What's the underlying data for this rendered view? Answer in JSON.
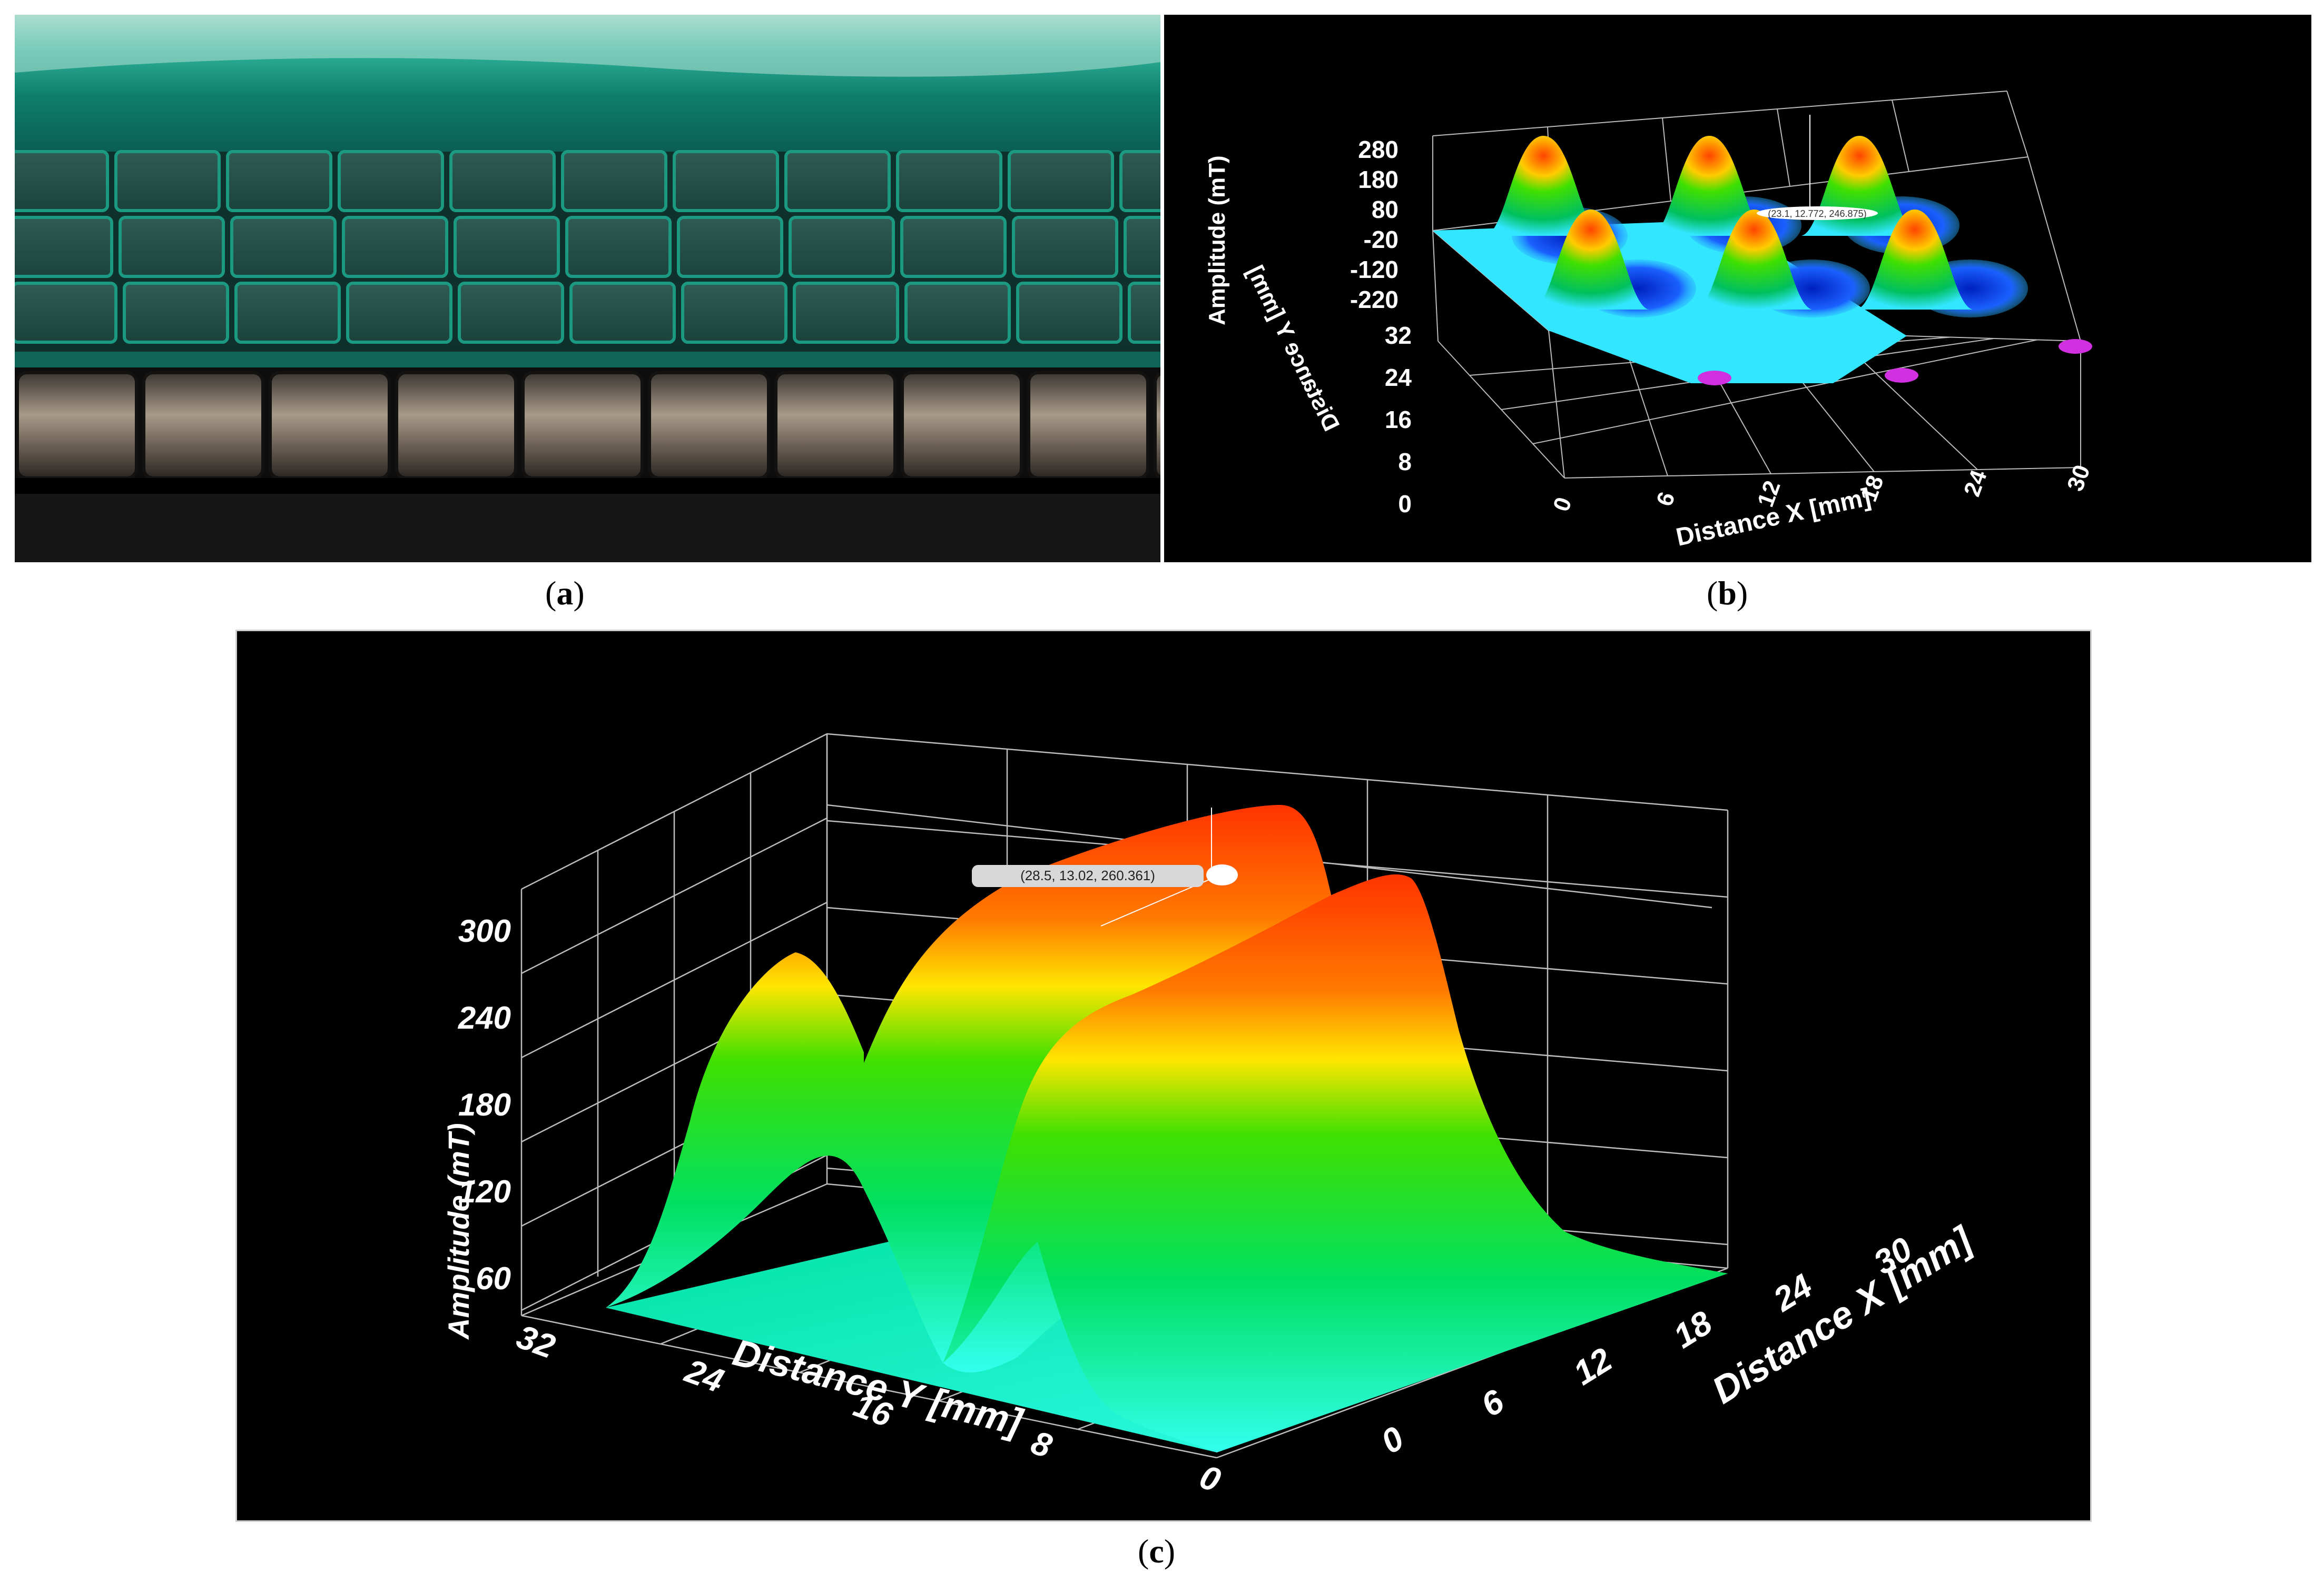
{
  "captions": {
    "a": "a",
    "b": "b",
    "c": "c"
  },
  "photo": {
    "description_icon": "magnet-array-photo-icon",
    "colors": {
      "film": "#17a890",
      "magnet": "#6b6058",
      "base": "#121212"
    }
  },
  "chart_data": [
    {
      "type": "surface3d",
      "panel": "b",
      "zlabel": "Amplitude (mT)",
      "ylabel": "Distance Y [mm]",
      "xlabel": "Distance X [mm]",
      "z_ticks": [
        "280",
        "180",
        "80",
        "-20",
        "-120",
        "-220"
      ],
      "y_ticks": [
        "32",
        "24",
        "16",
        "8",
        "0"
      ],
      "x_ticks": [
        "0",
        "6",
        "12",
        "18",
        "24",
        "30"
      ],
      "xlim": [
        0,
        30
      ],
      "ylim": [
        0,
        32
      ],
      "zlim": [
        -220,
        280
      ],
      "cursor_label": "(23.1, 12.772, 246.875)",
      "peaks_x": [
        6,
        15,
        24
      ],
      "peaks_y": [
        24,
        8
      ],
      "colors": {
        "high": "#ff5500",
        "mid": "#00e000",
        "base": "#33e6ff",
        "low": "#0020c0",
        "min": "#d030e0"
      }
    },
    {
      "type": "surface3d",
      "panel": "c",
      "zlabel": "Amplitude (mT)",
      "ylabel": "Distance Y [mm]",
      "xlabel": "Distance X [mm]",
      "z_ticks": [
        "300",
        "240",
        "180",
        "120",
        "60"
      ],
      "y_ticks": [
        "32",
        "24",
        "16",
        "8",
        "0"
      ],
      "x_ticks": [
        "0",
        "6",
        "12",
        "18",
        "24",
        "30"
      ],
      "xlim": [
        0,
        30
      ],
      "ylim": [
        0,
        32
      ],
      "zlim": [
        0,
        300
      ],
      "cursor_label": "(28.5, 13.02, 260.361)",
      "ridges_y": [
        22,
        13
      ],
      "peak_value": 260.361,
      "colors": {
        "high": "#ff3300",
        "mid": "#00e000",
        "base": "#33ffee"
      }
    }
  ]
}
